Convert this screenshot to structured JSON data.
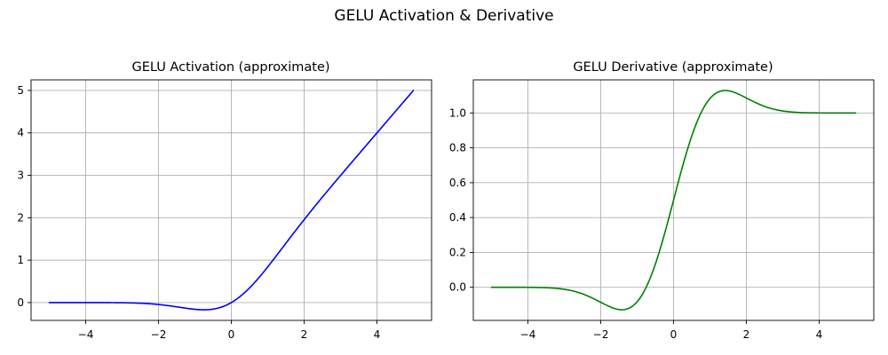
{
  "figure": {
    "suptitle": "GELU Activation & Derivative"
  },
  "chart_data": [
    {
      "type": "line",
      "title": "GELU Activation (approximate)",
      "xlabel": "",
      "ylabel": "",
      "function": "gelu",
      "x_range": [
        -5,
        5
      ],
      "xlim": [
        -5.5,
        5.5
      ],
      "ylim": [
        -0.42,
        5.25
      ],
      "xticks": [
        -4,
        -2,
        0,
        2,
        4
      ],
      "yticks": [
        0,
        1,
        2,
        3,
        4,
        5
      ],
      "xtick_labels": [
        "−4",
        "−2",
        "0",
        "2",
        "4"
      ],
      "ytick_labels": [
        "0",
        "1",
        "2",
        "3",
        "4",
        "5"
      ],
      "grid": true,
      "series": [
        {
          "color": "#0000ff",
          "x": [
            -5,
            -4,
            -3,
            -2,
            -1.5,
            -1,
            -0.75,
            -0.5,
            0,
            0.5,
            1,
            1.5,
            2,
            3,
            4,
            5
          ],
          "y": [
            0,
            0,
            -0.004,
            -0.045,
            -0.1,
            -0.159,
            -0.17,
            -0.154,
            0,
            0.346,
            0.841,
            1.4,
            1.955,
            2.996,
            4.0,
            5.0
          ]
        }
      ]
    },
    {
      "type": "line",
      "title": "GELU Derivative (approximate)",
      "xlabel": "",
      "ylabel": "",
      "function": "gelu_derivative",
      "x_range": [
        -5,
        5
      ],
      "xlim": [
        -5.5,
        5.5
      ],
      "ylim": [
        -0.19,
        1.19
      ],
      "xticks": [
        -4,
        -2,
        0,
        2,
        4
      ],
      "yticks": [
        0,
        0.2,
        0.4,
        0.6,
        0.8,
        1.0
      ],
      "xtick_labels": [
        "−4",
        "−2",
        "0",
        "2",
        "4"
      ],
      "ytick_labels": [
        "0.0",
        "0.2",
        "0.4",
        "0.6",
        "0.8",
        "1.0"
      ],
      "grid": true,
      "series": [
        {
          "color": "#008000",
          "x": [
            -5,
            -4,
            -3,
            -2,
            -1.5,
            -1,
            -0.5,
            0,
            0.5,
            1,
            1.5,
            2,
            3,
            4,
            5
          ],
          "y": [
            0,
            0,
            -0.012,
            -0.086,
            -0.129,
            -0.083,
            0.133,
            0.5,
            0.867,
            1.083,
            1.129,
            1.086,
            1.012,
            1.0,
            1.0
          ]
        }
      ]
    }
  ]
}
